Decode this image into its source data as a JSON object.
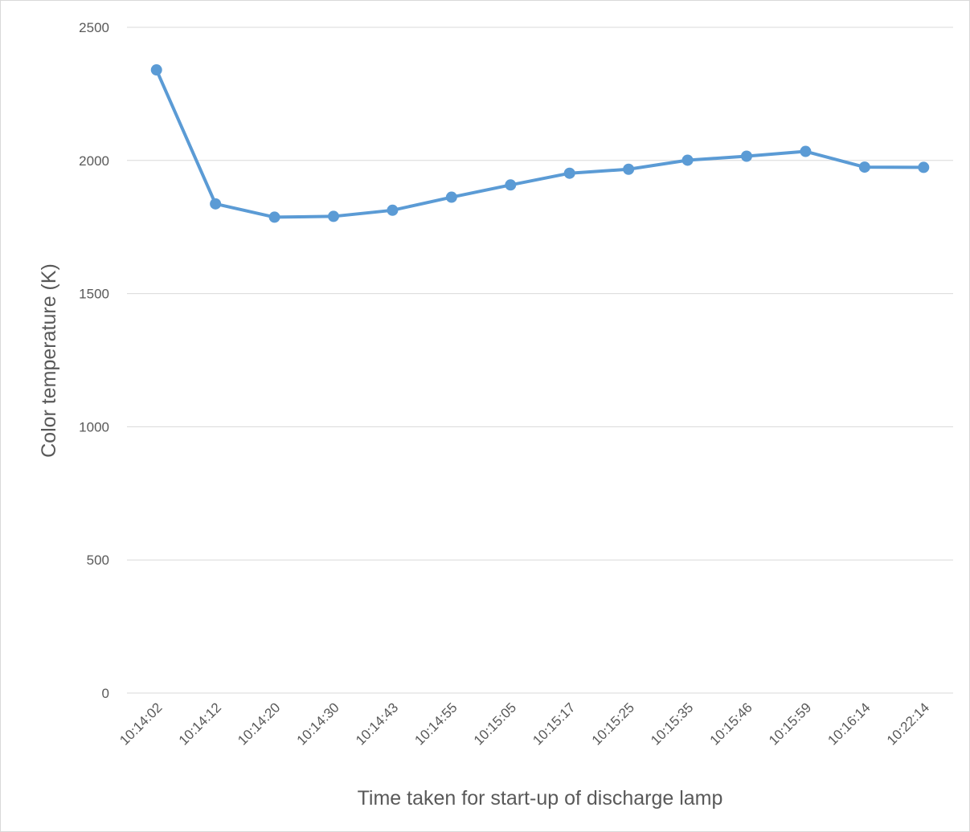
{
  "chart_data": {
    "type": "line",
    "title": "",
    "xlabel": "Time taken for start-up of discharge lamp",
    "ylabel": "Color temperature (K)",
    "ylim": [
      0,
      2500
    ],
    "yticks": [
      0,
      500,
      1000,
      1500,
      2000,
      2500
    ],
    "grid": true,
    "legend": "none",
    "categories": [
      "10:14:02",
      "10:14:12",
      "10:14:20",
      "10:14:30",
      "10:14:43",
      "10:14:55",
      "10:15:05",
      "10:15:17",
      "10:15:25",
      "10:15:35",
      "10:15:46",
      "10:15:59",
      "10:16:14",
      "10:22:14"
    ],
    "series": [
      {
        "values": [
          2340,
          1837,
          1787,
          1790,
          1813,
          1862,
          1908,
          1952,
          1967,
          2001,
          2016,
          2034,
          1975,
          1974
        ],
        "color": "#5b9bd5"
      }
    ]
  }
}
